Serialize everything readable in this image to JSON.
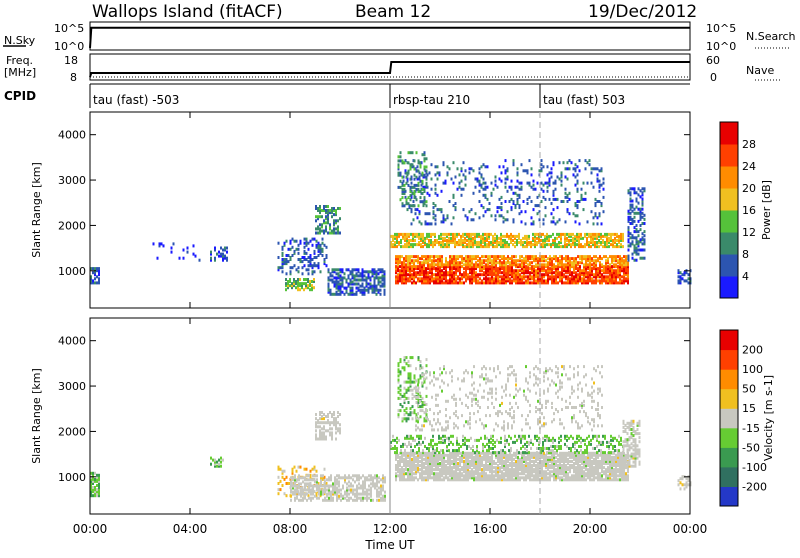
{
  "header": {
    "title": "Wallops Island (fitACF)",
    "beam": "Beam 12",
    "date": "19/Dec/2012"
  },
  "strips": {
    "nsky": {
      "label": "N.Sky",
      "right_label": "N.Search",
      "left_ticks": [
        "10^5",
        "10^0"
      ],
      "right_ticks": [
        "10^5",
        "10^0"
      ]
    },
    "freq": {
      "label": "Freq.",
      "unit": "[MHz]",
      "right_label": "Nave",
      "left_ticks": [
        "18",
        "8"
      ],
      "right_ticks": [
        "60",
        "0"
      ]
    },
    "cpid": {
      "label": "CPID",
      "segments": [
        {
          "text": "tau (fast) -503",
          "start_hour": 0
        },
        {
          "text": "rbsp-tau 210",
          "start_hour": 12
        },
        {
          "text": "tau (fast) 503",
          "start_hour": 18
        }
      ]
    }
  },
  "x_axis": {
    "label": "Time UT",
    "ticks": [
      "00:00",
      "04:00",
      "08:00",
      "12:00",
      "16:00",
      "20:00",
      "00:00"
    ],
    "tick_hours": [
      0,
      4,
      8,
      12,
      16,
      20,
      24
    ]
  },
  "chart_data": [
    {
      "type": "line",
      "panel": "nsky-nsearch",
      "xlabel": "",
      "ylabel": "N.Sky",
      "x_range_hours": [
        0,
        24
      ],
      "series": [
        {
          "name": "N.Sky",
          "x": [
            0,
            0.05,
            24
          ],
          "y_log10": [
            0,
            4.6,
            4.6
          ]
        },
        {
          "name": "N.Search",
          "x": [
            0,
            24
          ],
          "y_log10": [
            0,
            0
          ]
        }
      ]
    },
    {
      "type": "line",
      "panel": "freq-nave",
      "x_range_hours": [
        0,
        24
      ],
      "series": [
        {
          "name": "Freq.",
          "x": [
            0,
            0.05,
            12,
            12.05,
            24
          ],
          "y": [
            8,
            10,
            10,
            15.5,
            15.5
          ]
        },
        {
          "name": "Nave",
          "x": [
            0,
            24
          ],
          "y": [
            0,
            0
          ]
        }
      ]
    },
    {
      "type": "heatmap",
      "panel": "power",
      "xlabel": "Time UT",
      "ylabel": "Slant Range [km]",
      "x_range_hours": [
        0,
        24
      ],
      "ylim": [
        180,
        4500
      ],
      "yticks": [
        1000,
        2000,
        3000,
        4000
      ],
      "colorbar": {
        "label": "Power [dB]",
        "ticks": [
          "4",
          "8",
          "12",
          "16",
          "20",
          "24",
          "28"
        ],
        "colors": [
          "#1a1aff",
          "#2c55b0",
          "#3a8a6a",
          "#55c23a",
          "#f0c020",
          "#ff8c00",
          "#ff4000",
          "#e80000"
        ]
      },
      "regions": [
        {
          "t0": 0.0,
          "t1": 0.4,
          "r0": 700,
          "r1": 1050,
          "level": 1,
          "density": 0.7
        },
        {
          "t0": 2.5,
          "t1": 4.5,
          "r0": 1200,
          "r1": 1600,
          "level": 0,
          "density": 0.1
        },
        {
          "t0": 4.8,
          "t1": 5.5,
          "r0": 1200,
          "r1": 1500,
          "level": 1,
          "density": 0.4
        },
        {
          "t0": 7.5,
          "t1": 9.5,
          "r0": 900,
          "r1": 1700,
          "level": 1,
          "density": 0.3
        },
        {
          "t0": 7.8,
          "t1": 9.0,
          "r0": 550,
          "r1": 800,
          "level": 3,
          "density": 0.6
        },
        {
          "t0": 9.0,
          "t1": 10.0,
          "r0": 1800,
          "r1": 2400,
          "level": 2,
          "density": 0.5
        },
        {
          "t0": 9.5,
          "t1": 11.8,
          "r0": 450,
          "r1": 1000,
          "level": 1,
          "density": 0.6
        },
        {
          "t0": 12.2,
          "t1": 21.5,
          "r0": 700,
          "r1": 1100,
          "level": 6,
          "density": 0.85
        },
        {
          "t0": 12.2,
          "t1": 21.5,
          "r0": 1100,
          "r1": 1300,
          "level": 5,
          "density": 0.75
        },
        {
          "t0": 12.0,
          "t1": 21.3,
          "r0": 1500,
          "r1": 1800,
          "level": 4,
          "density": 0.7
        },
        {
          "t0": 12.5,
          "t1": 20.5,
          "r0": 2000,
          "r1": 3400,
          "level": 1,
          "density": 0.15
        },
        {
          "t0": 12.3,
          "t1": 13.5,
          "r0": 2400,
          "r1": 3600,
          "level": 2,
          "density": 0.3
        },
        {
          "t0": 21.5,
          "t1": 22.2,
          "r0": 1200,
          "r1": 2800,
          "level": 1,
          "density": 0.4
        },
        {
          "t0": 23.5,
          "t1": 24.0,
          "r0": 700,
          "r1": 1000,
          "level": 1,
          "density": 0.5
        }
      ]
    },
    {
      "type": "heatmap",
      "panel": "velocity",
      "xlabel": "Time UT",
      "ylabel": "Slant Range [km]",
      "x_range_hours": [
        0,
        24
      ],
      "ylim": [
        180,
        4500
      ],
      "yticks": [
        1000,
        2000,
        3000,
        4000
      ],
      "colorbar": {
        "label": "Velocity [m s-1]",
        "ticks": [
          "200",
          "100",
          "50",
          "15",
          "-15",
          "-50",
          "-100",
          "-200"
        ],
        "colors": [
          "#2438c8",
          "#307060",
          "#3a9a50",
          "#66cc33",
          "#c8c8c0",
          "#f0c020",
          "#ff8c00",
          "#ff4000",
          "#e80000"
        ]
      },
      "regions": [
        {
          "t0": 0.0,
          "t1": 0.4,
          "r0": 550,
          "r1": 1050,
          "level": 3,
          "density": 0.8
        },
        {
          "t0": 4.8,
          "t1": 5.3,
          "r0": 1200,
          "r1": 1400,
          "level": 3,
          "density": 0.4
        },
        {
          "t0": 7.5,
          "t1": 9.5,
          "r0": 550,
          "r1": 1200,
          "level": 5,
          "density": 0.25
        },
        {
          "t0": 8.0,
          "t1": 11.8,
          "r0": 450,
          "r1": 1000,
          "level": 4,
          "density": 0.6
        },
        {
          "t0": 9.0,
          "t1": 10.0,
          "r0": 1800,
          "r1": 2400,
          "level": 4,
          "density": 0.5
        },
        {
          "t0": 12.2,
          "t1": 21.5,
          "r0": 900,
          "r1": 1500,
          "level": 4,
          "density": 0.85
        },
        {
          "t0": 12.0,
          "t1": 21.3,
          "r0": 1500,
          "r1": 1900,
          "level": 3,
          "density": 0.35
        },
        {
          "t0": 12.3,
          "t1": 13.5,
          "r0": 2200,
          "r1": 3600,
          "level": 3,
          "density": 0.3
        },
        {
          "t0": 13.0,
          "t1": 20.5,
          "r0": 2000,
          "r1": 3400,
          "level": 4,
          "density": 0.15
        },
        {
          "t0": 21.3,
          "t1": 22.0,
          "r0": 1200,
          "r1": 2200,
          "level": 4,
          "density": 0.5
        },
        {
          "t0": 23.5,
          "t1": 24.0,
          "r0": 700,
          "r1": 1000,
          "level": 4,
          "density": 0.4
        }
      ]
    }
  ]
}
